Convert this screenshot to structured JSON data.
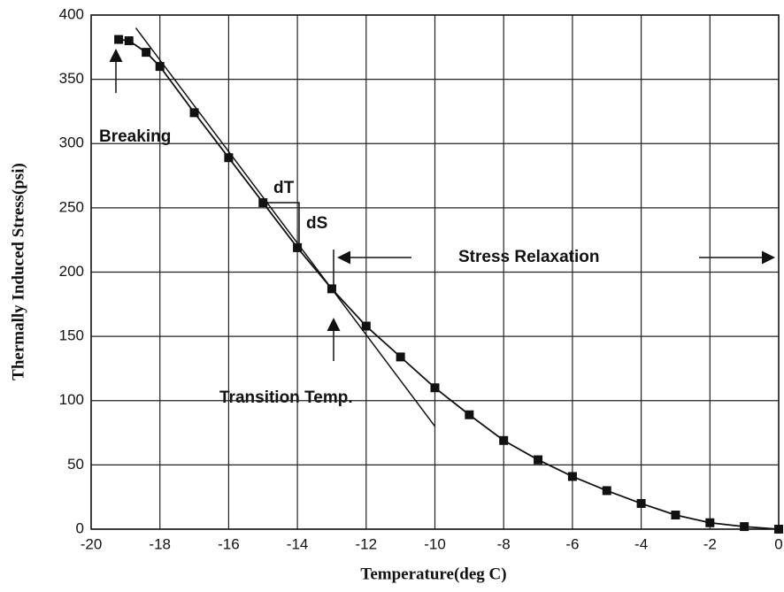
{
  "chart_data": {
    "type": "line",
    "xlabel": "Temperature(deg C)",
    "ylabel": "Thermally Induced Stress(psi)",
    "x": [
      -19.2,
      -18.9,
      -18.4,
      -18,
      -17,
      -16,
      -15,
      -14,
      -13,
      -12,
      -11,
      -10,
      -9,
      -8,
      -7,
      -6,
      -5,
      -4,
      -3,
      -2,
      -1,
      0
    ],
    "series": [
      {
        "name": "Thermally Induced Stress",
        "color": "#111111",
        "values": [
          381,
          380,
          371,
          360,
          324,
          289,
          254,
          219,
          187,
          158,
          134,
          110,
          89,
          69,
          54,
          41,
          30,
          20,
          11,
          5,
          2,
          0
        ]
      }
    ],
    "tangent": {
      "x": [
        -18.7,
        -10
      ],
      "y": [
        390,
        80
      ]
    },
    "xlim": [
      -20,
      0
    ],
    "xticks": [
      -20,
      -18,
      -16,
      -14,
      -12,
      -10,
      -8,
      -6,
      -4,
      -2,
      0
    ],
    "ylim": [
      0,
      400
    ],
    "yticks": [
      0,
      50,
      100,
      150,
      200,
      250,
      300,
      350,
      400
    ],
    "grid": true,
    "annotations": [
      "Breaking",
      "dT",
      "dS",
      "Stress Relaxation",
      "Transition Temp."
    ]
  }
}
